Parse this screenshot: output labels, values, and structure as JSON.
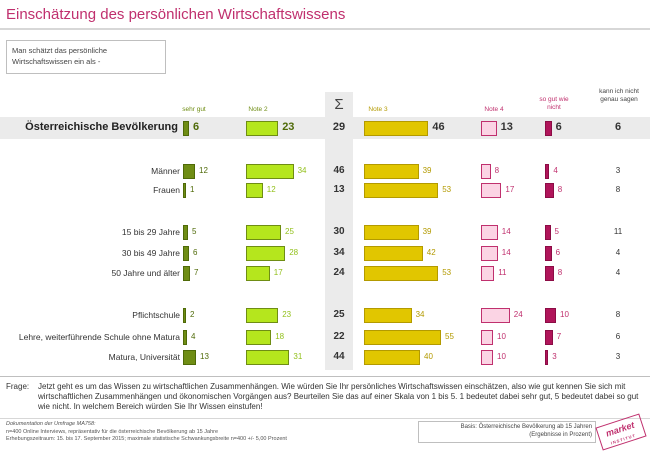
{
  "title": "Einschätzung des persönlichen Wirtschaftswissens",
  "intro": "Man schätzt das persönliche Wirtschaftswissen ein als -",
  "columns": [
    {
      "key": "sehr_gut",
      "label": "sehr gut",
      "color": "#6f8d14",
      "fill": "#6f8d14",
      "border": "#4f6a08"
    },
    {
      "key": "note2",
      "label": "Note 2",
      "color": "#92c01b",
      "fill": "#b5e61d",
      "border": "#6f8d14"
    },
    {
      "key": "sum",
      "label": "Σ"
    },
    {
      "key": "note3",
      "label": "Note 3",
      "color": "#b39a00",
      "fill": "#e1c600",
      "border": "#b39a00"
    },
    {
      "key": "note4",
      "label": "Note 4",
      "color": "#c0306e",
      "fill": "#fbd4e4",
      "border": "#c0306e"
    },
    {
      "key": "nicht",
      "label": "so gut wie nicht",
      "color": "#c0306e",
      "fill": "#b0155a",
      "border": "#8c0c45"
    },
    {
      "key": "kv",
      "label": "kann ich nicht genau sagen",
      "color": "#444444"
    }
  ],
  "chart_data": {
    "type": "bar",
    "title": "Einschätzung des persönlichen Wirtschaftswissens",
    "unit": "Prozent",
    "categories": [
      "Österreichische Bevölkerung",
      "Männer",
      "Frauen",
      "15 bis 29 Jahre",
      "30 bis 49 Jahre",
      "50 Jahre und älter",
      "Pflichtschule",
      "Lehre, weiterführende Schule ohne Matura",
      "Matura, Universität"
    ],
    "series": [
      {
        "name": "sehr gut",
        "values": [
          6,
          12,
          1,
          5,
          6,
          7,
          2,
          4,
          13
        ]
      },
      {
        "name": "Note 2",
        "values": [
          23,
          34,
          12,
          25,
          28,
          17,
          23,
          18,
          31
        ]
      },
      {
        "name": "Note 3",
        "values": [
          46,
          39,
          53,
          39,
          42,
          53,
          34,
          55,
          40
        ]
      },
      {
        "name": "Note 4",
        "values": [
          13,
          8,
          17,
          14,
          14,
          11,
          24,
          10,
          10
        ]
      },
      {
        "name": "so gut wie nicht",
        "values": [
          6,
          4,
          8,
          5,
          6,
          8,
          10,
          7,
          3
        ]
      },
      {
        "name": "kann ich nicht genau sagen",
        "values": [
          6,
          3,
          8,
          11,
          4,
          4,
          8,
          6,
          3
        ]
      }
    ],
    "sum_label": "Σ",
    "sum_values": [
      29,
      46,
      13,
      30,
      34,
      24,
      25,
      22,
      44
    ]
  },
  "frage_label": "Frage:",
  "frage_text": "Jetzt geht es um das Wissen zu wirtschaftlichen Zusammenhängen. Wie würden Sie Ihr persönliches Wirtschaftswissen einschätzen, also wie gut kennen Sie sich mit wirtschaftlichen Zusammenhängen  und ökonomischen Vorgängen aus? Beurteilen Sie das auf einer Skala von 1 bis 5. 1 bedeutet dabei sehr gut, 5 bedeutet dabei so gut wie nicht. In welchem Bereich würden Sie Ihr Wissen einstufen!",
  "doc_line": "Dokumentation der Umfrage MA758:",
  "method1": "n=400 Online Interviews, repräsentativ für die österreichische Bevölkerung ab 15 Jahre",
  "method2": "Erhebungszeitraum: 15. bis 17. September 2015; maximale statistische Schwankungsbreite n=400 +/- 5,00 Prozent",
  "basis1": "Basis: Österreichische Bevölkerung ab 15 Jahren",
  "basis2": "(Ergebnisse in Prozent)",
  "logo": "market",
  "logo_sub": "INSTITUT"
}
